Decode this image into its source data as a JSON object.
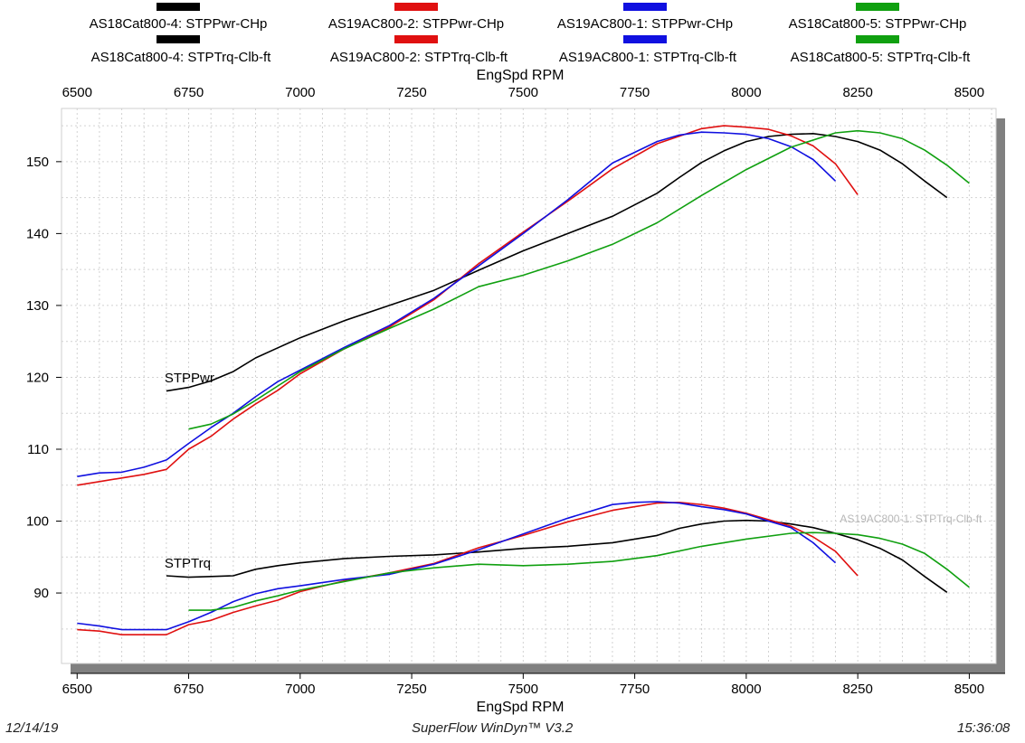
{
  "footer": {
    "date": "12/14/19",
    "software": "SuperFlow WinDyn™ V3.2",
    "time": "15:36:08"
  },
  "chart_data": {
    "type": "line",
    "xlabel": "EngSpd RPM",
    "x_ticks": [
      6500,
      6750,
      7000,
      7250,
      7500,
      7750,
      8000,
      8250,
      8500
    ],
    "y_ticks": [
      90,
      100,
      110,
      120,
      130,
      140,
      150
    ],
    "xlim": [
      6465,
      8560
    ],
    "ylim": [
      80.2,
      157.4
    ],
    "grid": true,
    "legend_placement": "top",
    "curve_labels": [
      {
        "text": "STPPwr",
        "x": 6700,
        "y": 119.3
      },
      {
        "text": "STPTrq",
        "x": 6700,
        "y": 93.5
      }
    ],
    "annotation": "AS19AC800-1: STPTrq-Clb-ft",
    "legend": [
      {
        "name": "AS18Cat800-4: STPPwr-CHp",
        "color": "#000000"
      },
      {
        "name": "AS19AC800-2: STPPwr-CHp",
        "color": "#e01010"
      },
      {
        "name": "AS19AC800-1: STPPwr-CHp",
        "color": "#1010e0"
      },
      {
        "name": "AS18Cat800-5: STPPwr-CHp",
        "color": "#10a010"
      },
      {
        "name": "AS18Cat800-4: STPTrq-Clb-ft",
        "color": "#000000"
      },
      {
        "name": "AS19AC800-2: STPTrq-Clb-ft",
        "color": "#e01010"
      },
      {
        "name": "AS19AC800-1: STPTrq-Clb-ft",
        "color": "#1010e0"
      },
      {
        "name": "AS18Cat800-5: STPTrq-Clb-ft",
        "color": "#10a010"
      }
    ],
    "series": [
      {
        "name": "AS18Cat800-4: STPPwr-CHp",
        "color": "#000000",
        "points": [
          [
            6700,
            118.1
          ],
          [
            6750,
            118.6
          ],
          [
            6800,
            119.5
          ],
          [
            6850,
            120.8
          ],
          [
            6900,
            122.7
          ],
          [
            6950,
            124.1
          ],
          [
            7000,
            125.5
          ],
          [
            7100,
            127.9
          ],
          [
            7200,
            130.0
          ],
          [
            7300,
            132.1
          ],
          [
            7400,
            134.9
          ],
          [
            7500,
            137.6
          ],
          [
            7600,
            140.0
          ],
          [
            7700,
            142.4
          ],
          [
            7800,
            145.6
          ],
          [
            7850,
            147.8
          ],
          [
            7900,
            149.9
          ],
          [
            7950,
            151.5
          ],
          [
            8000,
            152.8
          ],
          [
            8050,
            153.5
          ],
          [
            8100,
            153.8
          ],
          [
            8150,
            153.9
          ],
          [
            8200,
            153.5
          ],
          [
            8250,
            152.8
          ],
          [
            8300,
            151.6
          ],
          [
            8350,
            149.7
          ],
          [
            8400,
            147.3
          ],
          [
            8450,
            145.0
          ]
        ]
      },
      {
        "name": "AS19AC800-2: STPPwr-CHp",
        "color": "#e01010",
        "points": [
          [
            6500,
            105.0
          ],
          [
            6550,
            105.5
          ],
          [
            6600,
            106.0
          ],
          [
            6650,
            106.5
          ],
          [
            6700,
            107.2
          ],
          [
            6750,
            110.0
          ],
          [
            6800,
            111.8
          ],
          [
            6850,
            114.2
          ],
          [
            6900,
            116.3
          ],
          [
            6950,
            118.2
          ],
          [
            7000,
            120.5
          ],
          [
            7100,
            124.0
          ],
          [
            7200,
            127.0
          ],
          [
            7300,
            130.8
          ],
          [
            7400,
            135.8
          ],
          [
            7500,
            140.2
          ],
          [
            7600,
            144.5
          ],
          [
            7700,
            149.0
          ],
          [
            7800,
            152.5
          ],
          [
            7900,
            154.6
          ],
          [
            7950,
            155.0
          ],
          [
            8000,
            154.8
          ],
          [
            8050,
            154.5
          ],
          [
            8100,
            153.6
          ],
          [
            8150,
            152.2
          ],
          [
            8200,
            149.7
          ],
          [
            8250,
            145.4
          ]
        ]
      },
      {
        "name": "AS19AC800-1: STPPwr-CHp",
        "color": "#1010e0",
        "points": [
          [
            6500,
            106.2
          ],
          [
            6550,
            106.7
          ],
          [
            6600,
            106.8
          ],
          [
            6650,
            107.5
          ],
          [
            6700,
            108.5
          ],
          [
            6750,
            110.8
          ],
          [
            6800,
            113.0
          ],
          [
            6850,
            115.0
          ],
          [
            6900,
            117.3
          ],
          [
            6950,
            119.4
          ],
          [
            7000,
            121.0
          ],
          [
            7100,
            124.2
          ],
          [
            7200,
            127.2
          ],
          [
            7300,
            131.0
          ],
          [
            7400,
            135.5
          ],
          [
            7500,
            140.0
          ],
          [
            7600,
            144.7
          ],
          [
            7700,
            149.8
          ],
          [
            7800,
            152.8
          ],
          [
            7850,
            153.7
          ],
          [
            7900,
            154.1
          ],
          [
            7950,
            154.0
          ],
          [
            8000,
            153.8
          ],
          [
            8050,
            153.2
          ],
          [
            8100,
            152.1
          ],
          [
            8150,
            150.3
          ],
          [
            8200,
            147.3
          ]
        ]
      },
      {
        "name": "AS18Cat800-5: STPPwr-CHp",
        "color": "#10a010",
        "points": [
          [
            6750,
            112.8
          ],
          [
            6800,
            113.5
          ],
          [
            6850,
            114.9
          ],
          [
            6900,
            116.8
          ],
          [
            6950,
            118.8
          ],
          [
            7000,
            120.8
          ],
          [
            7100,
            124.0
          ],
          [
            7200,
            126.8
          ],
          [
            7300,
            129.5
          ],
          [
            7400,
            132.6
          ],
          [
            7500,
            134.2
          ],
          [
            7600,
            136.2
          ],
          [
            7700,
            138.5
          ],
          [
            7800,
            141.5
          ],
          [
            7900,
            145.3
          ],
          [
            8000,
            148.9
          ],
          [
            8100,
            152.0
          ],
          [
            8200,
            154.0
          ],
          [
            8250,
            154.3
          ],
          [
            8300,
            154.0
          ],
          [
            8350,
            153.2
          ],
          [
            8400,
            151.6
          ],
          [
            8450,
            149.5
          ],
          [
            8500,
            147.0
          ]
        ]
      },
      {
        "name": "AS18Cat800-4: STPTrq-Clb-ft",
        "color": "#000000",
        "points": [
          [
            6700,
            92.4
          ],
          [
            6750,
            92.2
          ],
          [
            6800,
            92.3
          ],
          [
            6850,
            92.4
          ],
          [
            6900,
            93.3
          ],
          [
            6950,
            93.8
          ],
          [
            7000,
            94.2
          ],
          [
            7100,
            94.8
          ],
          [
            7200,
            95.1
          ],
          [
            7300,
            95.3
          ],
          [
            7400,
            95.7
          ],
          [
            7500,
            96.2
          ],
          [
            7600,
            96.5
          ],
          [
            7700,
            97.0
          ],
          [
            7800,
            98.0
          ],
          [
            7850,
            99.0
          ],
          [
            7900,
            99.6
          ],
          [
            7950,
            100.0
          ],
          [
            8000,
            100.1
          ],
          [
            8050,
            100.0
          ],
          [
            8100,
            99.6
          ],
          [
            8150,
            99.1
          ],
          [
            8200,
            98.3
          ],
          [
            8250,
            97.4
          ],
          [
            8300,
            96.2
          ],
          [
            8350,
            94.6
          ],
          [
            8400,
            92.3
          ],
          [
            8450,
            90.1
          ]
        ]
      },
      {
        "name": "AS19AC800-2: STPTrq-Clb-ft",
        "color": "#e01010",
        "points": [
          [
            6500,
            84.9
          ],
          [
            6550,
            84.7
          ],
          [
            6600,
            84.2
          ],
          [
            6650,
            84.2
          ],
          [
            6700,
            84.2
          ],
          [
            6750,
            85.6
          ],
          [
            6800,
            86.2
          ],
          [
            6850,
            87.3
          ],
          [
            6900,
            88.2
          ],
          [
            6950,
            89.0
          ],
          [
            7000,
            90.2
          ],
          [
            7100,
            91.7
          ],
          [
            7200,
            92.8
          ],
          [
            7300,
            94.1
          ],
          [
            7400,
            96.3
          ],
          [
            7500,
            98.0
          ],
          [
            7600,
            99.9
          ],
          [
            7700,
            101.5
          ],
          [
            7800,
            102.5
          ],
          [
            7850,
            102.6
          ],
          [
            7900,
            102.3
          ],
          [
            7950,
            101.8
          ],
          [
            8000,
            101.1
          ],
          [
            8050,
            100.2
          ],
          [
            8100,
            99.3
          ],
          [
            8150,
            97.8
          ],
          [
            8200,
            95.8
          ],
          [
            8250,
            92.4
          ]
        ]
      },
      {
        "name": "AS19AC800-1: STPTrq-Clb-ft",
        "color": "#1010e0",
        "points": [
          [
            6500,
            85.8
          ],
          [
            6550,
            85.4
          ],
          [
            6600,
            84.9
          ],
          [
            6650,
            84.9
          ],
          [
            6700,
            84.9
          ],
          [
            6750,
            86.0
          ],
          [
            6800,
            87.3
          ],
          [
            6850,
            88.8
          ],
          [
            6900,
            89.9
          ],
          [
            6950,
            90.6
          ],
          [
            7000,
            91.0
          ],
          [
            7100,
            91.9
          ],
          [
            7200,
            92.6
          ],
          [
            7300,
            94.0
          ],
          [
            7400,
            96.0
          ],
          [
            7500,
            98.2
          ],
          [
            7600,
            100.4
          ],
          [
            7700,
            102.3
          ],
          [
            7750,
            102.6
          ],
          [
            7800,
            102.7
          ],
          [
            7850,
            102.5
          ],
          [
            7900,
            102.0
          ],
          [
            7950,
            101.6
          ],
          [
            8000,
            101.0
          ],
          [
            8050,
            100.0
          ],
          [
            8100,
            99.1
          ],
          [
            8150,
            97.0
          ],
          [
            8200,
            94.2
          ]
        ]
      },
      {
        "name": "AS18Cat800-5: STPTrq-Clb-ft",
        "color": "#10a010",
        "points": [
          [
            6750,
            87.6
          ],
          [
            6800,
            87.6
          ],
          [
            6850,
            88.0
          ],
          [
            6900,
            88.9
          ],
          [
            6950,
            89.6
          ],
          [
            7000,
            90.4
          ],
          [
            7100,
            91.6
          ],
          [
            7200,
            92.8
          ],
          [
            7300,
            93.5
          ],
          [
            7400,
            94.0
          ],
          [
            7500,
            93.8
          ],
          [
            7600,
            94.0
          ],
          [
            7700,
            94.4
          ],
          [
            7800,
            95.2
          ],
          [
            7900,
            96.5
          ],
          [
            8000,
            97.5
          ],
          [
            8100,
            98.3
          ],
          [
            8150,
            98.4
          ],
          [
            8200,
            98.3
          ],
          [
            8250,
            98.1
          ],
          [
            8300,
            97.6
          ],
          [
            8350,
            96.8
          ],
          [
            8400,
            95.5
          ],
          [
            8450,
            93.3
          ],
          [
            8500,
            90.8
          ]
        ]
      }
    ]
  }
}
